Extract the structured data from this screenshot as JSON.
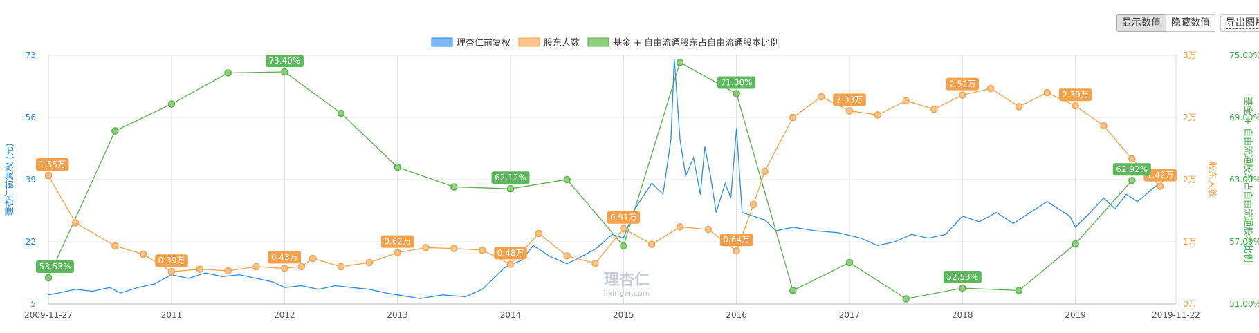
{
  "toolbar": {
    "show_values_label": "显示数值",
    "hide_values_label": "隐藏数值",
    "export_label": "导出图片"
  },
  "chart_data": {
    "type": "line",
    "legend": [
      "理杏仁前复权",
      "股东人数",
      "基金 + 自由流通股东占自由流通股本比例"
    ],
    "legend_position": "top-center",
    "grid": true,
    "watermark": {
      "text": "理杏仁",
      "url": "lixinger.com"
    },
    "x_ticks": [
      "2009-11-27",
      "2011",
      "2012",
      "2013",
      "2014",
      "2015",
      "2016",
      "2017",
      "2018",
      "2019",
      "2019-11-22"
    ],
    "x_range": [
      2009.91,
      2019.89
    ],
    "y_left": {
      "label": "理杏仁前复权 (元)",
      "range": [
        5,
        73
      ],
      "ticks": [
        "5",
        "22",
        "39",
        "56",
        "73"
      ],
      "color": "#1e88e5"
    },
    "y_right1": {
      "label": "股东人数",
      "range": [
        0,
        30000
      ],
      "ticks": [
        "0万",
        "1万",
        "2万",
        "2万",
        "3万"
      ],
      "color": "#f0a040"
    },
    "y_right2": {
      "label": "基金 + 自由流通股东占自由流通股本比例",
      "range": [
        51,
        75
      ],
      "ticks": [
        "51.00%",
        "57.00%",
        "63.00%",
        "69.00%",
        "75.00%"
      ],
      "color": "#3cb043"
    },
    "colors": {
      "price": "#2b8be6",
      "holders": "#f5a04a",
      "ratio": "#58b04a"
    },
    "series": [
      {
        "name": "理杏仁前复权",
        "values": [
          [
            2009.91,
            7.5
          ],
          [
            2010.0,
            8.0
          ],
          [
            2010.15,
            9.0
          ],
          [
            2010.3,
            8.5
          ],
          [
            2010.45,
            9.5
          ],
          [
            2010.55,
            8.0
          ],
          [
            2010.7,
            9.5
          ],
          [
            2010.85,
            10.5
          ],
          [
            2011.0,
            13.0
          ],
          [
            2011.15,
            12.0
          ],
          [
            2011.3,
            13.5
          ],
          [
            2011.45,
            12.5
          ],
          [
            2011.6,
            13.0
          ],
          [
            2011.75,
            12.0
          ],
          [
            2011.9,
            11.0
          ],
          [
            2012.0,
            9.5
          ],
          [
            2012.15,
            10.0
          ],
          [
            2012.3,
            9.0
          ],
          [
            2012.45,
            10.0
          ],
          [
            2012.6,
            9.5
          ],
          [
            2012.75,
            9.0
          ],
          [
            2012.9,
            8.0
          ],
          [
            2013.0,
            7.5
          ],
          [
            2013.2,
            6.5
          ],
          [
            2013.4,
            7.5
          ],
          [
            2013.6,
            7.0
          ],
          [
            2013.75,
            9.0
          ],
          [
            2013.85,
            12.0
          ],
          [
            2013.95,
            15.0
          ],
          [
            2014.1,
            17.0
          ],
          [
            2014.2,
            21.0
          ],
          [
            2014.35,
            18.0
          ],
          [
            2014.5,
            16.0
          ],
          [
            2014.6,
            17.5
          ],
          [
            2014.75,
            20.0
          ],
          [
            2014.9,
            24.0
          ],
          [
            2015.0,
            23.0
          ],
          [
            2015.1,
            31.0
          ],
          [
            2015.25,
            38.0
          ],
          [
            2015.35,
            35.0
          ],
          [
            2015.42,
            50.0
          ],
          [
            2015.45,
            72.0
          ],
          [
            2015.5,
            50.0
          ],
          [
            2015.55,
            40.0
          ],
          [
            2015.62,
            45.0
          ],
          [
            2015.68,
            35.0
          ],
          [
            2015.72,
            48.0
          ],
          [
            2015.77,
            40.0
          ],
          [
            2015.82,
            30.0
          ],
          [
            2015.9,
            38.0
          ],
          [
            2015.95,
            34.0
          ],
          [
            2016.0,
            53.0
          ],
          [
            2016.05,
            30.0
          ],
          [
            2016.15,
            29.0
          ],
          [
            2016.25,
            28.0
          ],
          [
            2016.35,
            25.0
          ],
          [
            2016.5,
            26.0
          ],
          [
            2016.7,
            25.0
          ],
          [
            2016.9,
            24.5
          ],
          [
            2017.1,
            23.0
          ],
          [
            2017.25,
            21.0
          ],
          [
            2017.4,
            22.0
          ],
          [
            2017.55,
            24.0
          ],
          [
            2017.7,
            23.0
          ],
          [
            2017.85,
            24.0
          ],
          [
            2018.0,
            29.0
          ],
          [
            2018.15,
            27.5
          ],
          [
            2018.3,
            30.0
          ],
          [
            2018.45,
            27.0
          ],
          [
            2018.6,
            30.0
          ],
          [
            2018.75,
            33.0
          ],
          [
            2018.85,
            31.0
          ],
          [
            2018.95,
            29.0
          ],
          [
            2019.0,
            26.0
          ],
          [
            2019.1,
            29.0
          ],
          [
            2019.25,
            34.0
          ],
          [
            2019.35,
            31.0
          ],
          [
            2019.45,
            35.0
          ],
          [
            2019.55,
            33.0
          ],
          [
            2019.7,
            37.0
          ],
          [
            2019.8,
            39.0
          ],
          [
            2019.89,
            39.0
          ]
        ]
      },
      {
        "name": "股东人数",
        "values": [
          [
            2009.91,
            15500
          ],
          [
            2010.15,
            9800
          ],
          [
            2010.5,
            7000
          ],
          [
            2010.75,
            6000
          ],
          [
            2011.0,
            3900
          ],
          [
            2011.25,
            4200
          ],
          [
            2011.5,
            4000
          ],
          [
            2011.75,
            4500
          ],
          [
            2012.0,
            4300
          ],
          [
            2012.15,
            4500
          ],
          [
            2012.25,
            5500
          ],
          [
            2012.5,
            4500
          ],
          [
            2012.75,
            5000
          ],
          [
            2013.0,
            6200
          ],
          [
            2013.25,
            6800
          ],
          [
            2013.5,
            6700
          ],
          [
            2013.75,
            6500
          ],
          [
            2014.0,
            4800
          ],
          [
            2014.25,
            8500
          ],
          [
            2014.5,
            5800
          ],
          [
            2014.75,
            4900
          ],
          [
            2015.0,
            9100
          ],
          [
            2015.25,
            7200
          ],
          [
            2015.5,
            9300
          ],
          [
            2015.75,
            9000
          ],
          [
            2016.0,
            6400
          ],
          [
            2016.15,
            12000
          ],
          [
            2016.25,
            16000
          ],
          [
            2016.5,
            22500
          ],
          [
            2016.75,
            25000
          ],
          [
            2017.0,
            23300
          ],
          [
            2017.25,
            22800
          ],
          [
            2017.5,
            24500
          ],
          [
            2017.75,
            23500
          ],
          [
            2018.0,
            25200
          ],
          [
            2018.25,
            26000
          ],
          [
            2018.5,
            23800
          ],
          [
            2018.75,
            25500
          ],
          [
            2019.0,
            23900
          ],
          [
            2019.25,
            21500
          ],
          [
            2019.5,
            17500
          ],
          [
            2019.75,
            14200
          ]
        ]
      },
      {
        "name": "基金 + 自由流通股东占自由流通股本比例",
        "values": [
          [
            2009.91,
            53.53
          ],
          [
            2010.5,
            67.7
          ],
          [
            2011.0,
            70.3
          ],
          [
            2011.5,
            73.3
          ],
          [
            2012.0,
            73.4
          ],
          [
            2012.5,
            69.4
          ],
          [
            2013.0,
            64.2
          ],
          [
            2013.5,
            62.3
          ],
          [
            2014.0,
            62.12
          ],
          [
            2014.5,
            63.0
          ],
          [
            2015.0,
            56.6
          ],
          [
            2015.5,
            74.3
          ],
          [
            2016.0,
            71.3
          ],
          [
            2016.5,
            52.3
          ],
          [
            2017.0,
            55.0
          ],
          [
            2017.5,
            51.5
          ],
          [
            2018.0,
            52.53
          ],
          [
            2018.5,
            52.3
          ],
          [
            2019.0,
            56.8
          ],
          [
            2019.5,
            62.92
          ]
        ]
      }
    ],
    "data_labels": {
      "price": [],
      "holders": [
        {
          "x": 2009.91,
          "value": 15500,
          "text": "1.55万"
        },
        {
          "x": 2011.0,
          "value": 3900,
          "text": "0.39万"
        },
        {
          "x": 2012.0,
          "value": 4300,
          "text": "0.43万"
        },
        {
          "x": 2013.0,
          "value": 6200,
          "text": "0.62万"
        },
        {
          "x": 2014.0,
          "value": 4800,
          "text": "0.48万"
        },
        {
          "x": 2015.0,
          "value": 9100,
          "text": "0.91万"
        },
        {
          "x": 2016.0,
          "value": 6400,
          "text": "0.64万"
        },
        {
          "x": 2017.0,
          "value": 23300,
          "text": "2.33万"
        },
        {
          "x": 2018.0,
          "value": 25200,
          "text": "2.52万"
        },
        {
          "x": 2019.0,
          "value": 23900,
          "text": "2.39万"
        },
        {
          "x": 2019.75,
          "value": 14200,
          "text": "1.42万"
        }
      ],
      "ratio": [
        {
          "x": 2009.91,
          "value": 53.53,
          "text": "53.53%"
        },
        {
          "x": 2012.0,
          "value": 73.4,
          "text": "73.40%"
        },
        {
          "x": 2014.0,
          "value": 62.12,
          "text": "62.12%"
        },
        {
          "x": 2016.0,
          "value": 71.3,
          "text": "71.30%"
        },
        {
          "x": 2018.0,
          "value": 52.53,
          "text": "52.53%"
        },
        {
          "x": 2019.5,
          "value": 62.92,
          "text": "62.92%"
        }
      ]
    }
  }
}
